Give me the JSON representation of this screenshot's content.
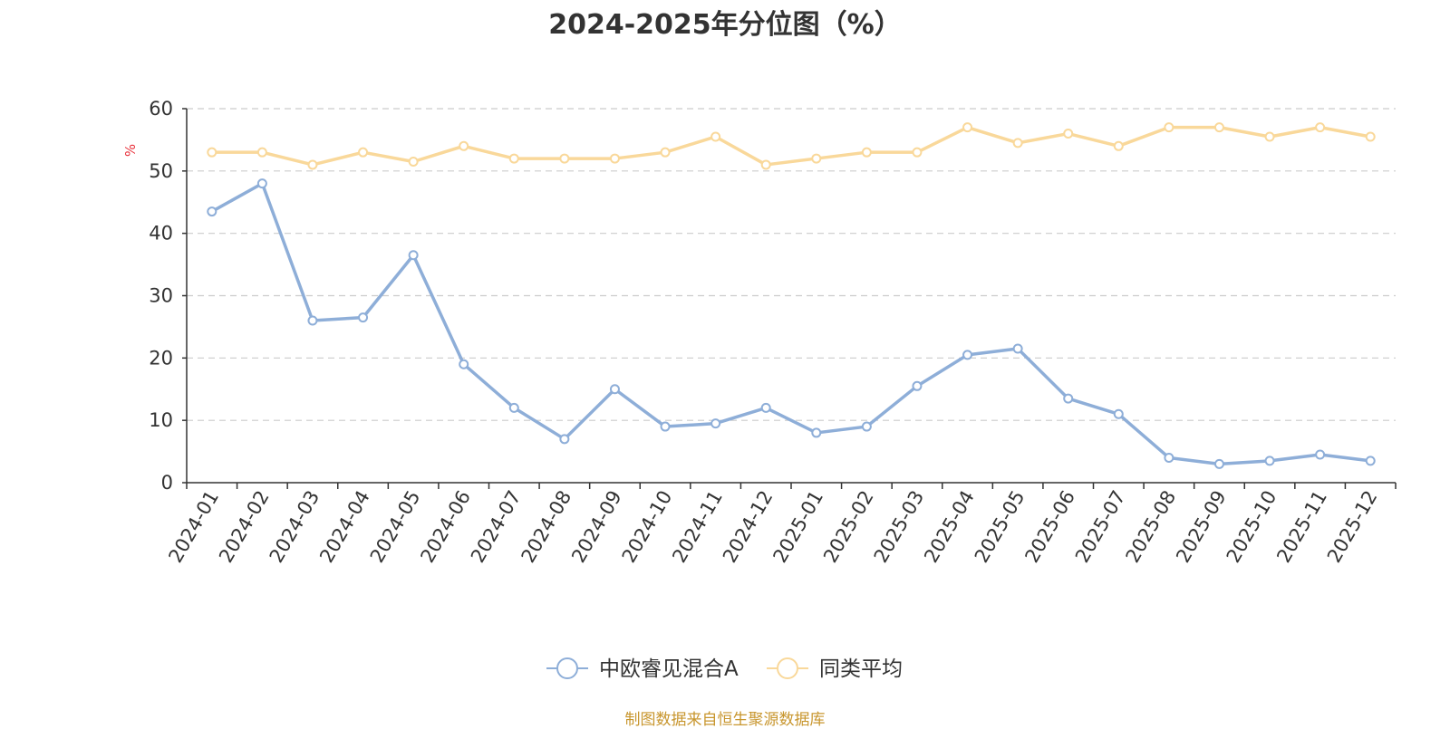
{
  "chart_data": {
    "type": "line",
    "title": "2024-2025年分位图（%）",
    "ylabel": "%",
    "ylim": [
      0,
      60
    ],
    "yticks": [
      0,
      10,
      20,
      30,
      40,
      50,
      60
    ],
    "grid": true,
    "legend_placement": "bottom",
    "categories": [
      "2024-01",
      "2024-02",
      "2024-03",
      "2024-04",
      "2024-05",
      "2024-06",
      "2024-07",
      "2024-08",
      "2024-09",
      "2024-10",
      "2024-11",
      "2024-12",
      "2025-01",
      "2025-02",
      "2025-03",
      "2025-04",
      "2025-05",
      "2025-06",
      "2025-07",
      "2025-08",
      "2025-09",
      "2025-10",
      "2025-11",
      "2025-12"
    ],
    "series": [
      {
        "name": "中欧睿见混合A",
        "color": "#8eaed8",
        "values": [
          43.5,
          48,
          26,
          26.5,
          36.5,
          19,
          12,
          7,
          15,
          9,
          9.5,
          12,
          8,
          9,
          15.5,
          20.5,
          21.5,
          13.5,
          11,
          4,
          3,
          3.5,
          4.5,
          3.5
        ]
      },
      {
        "name": "同类平均",
        "color": "#f9d89a",
        "values": [
          53,
          53,
          51,
          53,
          51.5,
          54,
          52,
          52,
          52,
          53,
          55.5,
          51,
          52,
          53,
          53,
          57,
          54.5,
          56,
          54,
          57,
          57,
          55.5,
          57,
          55.5
        ]
      }
    ]
  },
  "source_text": "制图数据来自恒生聚源数据库"
}
